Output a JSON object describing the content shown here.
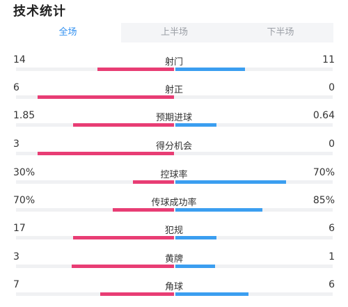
{
  "header": {
    "title": "技术统计"
  },
  "tabs": [
    {
      "label": "全场",
      "active": true
    },
    {
      "label": "上半场",
      "active": false
    },
    {
      "label": "下半场",
      "active": false
    }
  ],
  "colors": {
    "home_bar": "#e83d74",
    "away_bar": "#3b9ef0",
    "track": "#f0f1f3",
    "active_tab": "#2f8ff0"
  },
  "stats": [
    {
      "label": "射门",
      "home": "14",
      "away": "11",
      "home_share": 0.56,
      "away_share": 0.44
    },
    {
      "label": "射正",
      "home": "6",
      "away": "0",
      "home_share": 1.0,
      "away_share": 0.0
    },
    {
      "label": "预期进球",
      "home": "1.85",
      "away": "0.64",
      "home_share": 0.74,
      "away_share": 0.26
    },
    {
      "label": "得分机会",
      "home": "3",
      "away": "0",
      "home_share": 1.0,
      "away_share": 0.0
    },
    {
      "label": "控球率",
      "home": "30%",
      "away": "70%",
      "home_share": 0.3,
      "away_share": 0.7
    },
    {
      "label": "传球成功率",
      "home": "70%",
      "away": "85%",
      "home_share": 0.45,
      "away_share": 0.55
    },
    {
      "label": "犯规",
      "home": "17",
      "away": "6",
      "home_share": 0.74,
      "away_share": 0.26
    },
    {
      "label": "黄牌",
      "home": "3",
      "away": "1",
      "home_share": 0.75,
      "away_share": 0.25
    },
    {
      "label": "角球",
      "home": "7",
      "away": "6",
      "home_share": 0.54,
      "away_share": 0.46
    }
  ]
}
